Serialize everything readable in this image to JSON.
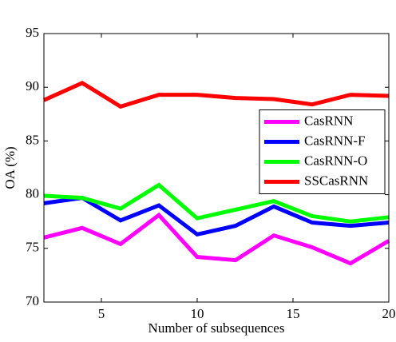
{
  "chart_data": {
    "type": "line",
    "x_label": "Number of subsequences",
    "y_label": "OA (%)",
    "x": [
      2,
      4,
      6,
      8,
      10,
      12,
      14,
      16,
      18,
      20
    ],
    "series": [
      {
        "name": "CasRNN",
        "color": "#ff00ff",
        "values": [
          76.0,
          76.9,
          75.4,
          78.1,
          74.2,
          73.9,
          76.2,
          75.1,
          73.6,
          75.7
        ]
      },
      {
        "name": "CasRNN-F",
        "color": "#0000ff",
        "values": [
          79.2,
          79.7,
          77.6,
          79.0,
          76.3,
          77.1,
          78.9,
          77.4,
          77.1,
          77.4
        ]
      },
      {
        "name": "CasRNN-O",
        "color": "#00ff00",
        "values": [
          79.9,
          79.7,
          78.7,
          80.9,
          77.8,
          78.6,
          79.4,
          78.0,
          77.5,
          77.9
        ]
      },
      {
        "name": "SSCasRNN",
        "color": "#ff0000",
        "values": [
          88.8,
          90.4,
          88.2,
          89.3,
          89.3,
          89.0,
          88.9,
          88.4,
          89.3,
          89.2
        ]
      }
    ],
    "xlim": [
      2,
      20
    ],
    "xticks": [
      5,
      10,
      15,
      20
    ],
    "ylim": [
      70,
      95
    ],
    "yticks": [
      70,
      75,
      80,
      85,
      90,
      95
    ],
    "legend": "center right"
  }
}
